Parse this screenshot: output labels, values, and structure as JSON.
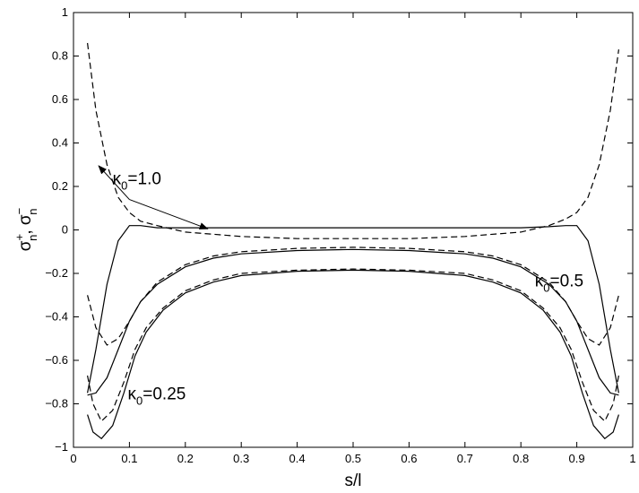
{
  "chart_data": {
    "type": "line",
    "xlabel": "s/l",
    "ylabel": "σ⁺ₙ, σ⁻ₙ",
    "xlim": [
      0,
      1
    ],
    "ylim": [
      -1,
      1
    ],
    "xticks": [
      0,
      0.1,
      0.2,
      0.3,
      0.4,
      0.5,
      0.6,
      0.7,
      0.8,
      0.9,
      1
    ],
    "xtick_labels": [
      "0",
      "0.1",
      "0.2",
      "0.3",
      "0.4",
      "0.5",
      "0.6",
      "0.7",
      "0.8",
      "0.9",
      "1"
    ],
    "yticks": [
      -1,
      -0.8,
      -0.6,
      -0.4,
      -0.2,
      0,
      0.2,
      0.4,
      0.6,
      0.8,
      1
    ],
    "ytick_labels": [
      "−1",
      "−0.8",
      "−0.6",
      "−0.4",
      "−0.2",
      "0",
      "0.2",
      "0.4",
      "0.6",
      "0.8",
      "1"
    ],
    "grid": false,
    "series": [
      {
        "style": "solid",
        "x": [
          0.025,
          0.04,
          0.06,
          0.08,
          0.1,
          0.12,
          0.15,
          0.2,
          0.3,
          0.4,
          0.5,
          0.6,
          0.7,
          0.8,
          0.85,
          0.88,
          0.9,
          0.92,
          0.94,
          0.96,
          0.975
        ],
        "y": [
          -0.75,
          -0.55,
          -0.25,
          -0.05,
          0.02,
          0.02,
          0.01,
          0.01,
          0.01,
          0.01,
          0.01,
          0.01,
          0.01,
          0.01,
          0.015,
          0.02,
          0.02,
          -0.05,
          -0.25,
          -0.55,
          -0.75
        ]
      },
      {
        "style": "dashed",
        "x": [
          0.025,
          0.04,
          0.06,
          0.08,
          0.1,
          0.12,
          0.15,
          0.2,
          0.3,
          0.4,
          0.5,
          0.6,
          0.7,
          0.8,
          0.85,
          0.88,
          0.9,
          0.92,
          0.94,
          0.96,
          0.975
        ],
        "y": [
          0.86,
          0.55,
          0.3,
          0.15,
          0.08,
          0.04,
          0.02,
          -0.01,
          -0.03,
          -0.04,
          -0.04,
          -0.04,
          -0.03,
          -0.01,
          0.02,
          0.05,
          0.08,
          0.15,
          0.3,
          0.55,
          0.83
        ]
      },
      {
        "style": "solid",
        "x": [
          0.025,
          0.04,
          0.06,
          0.08,
          0.1,
          0.12,
          0.15,
          0.2,
          0.25,
          0.3,
          0.4,
          0.5,
          0.6,
          0.7,
          0.75,
          0.8,
          0.85,
          0.88,
          0.9,
          0.92,
          0.94,
          0.96,
          0.975
        ],
        "y": [
          -0.76,
          -0.75,
          -0.68,
          -0.55,
          -0.42,
          -0.33,
          -0.25,
          -0.17,
          -0.13,
          -0.11,
          -0.095,
          -0.09,
          -0.095,
          -0.11,
          -0.13,
          -0.17,
          -0.25,
          -0.33,
          -0.42,
          -0.55,
          -0.68,
          -0.75,
          -0.76
        ]
      },
      {
        "style": "dashed",
        "x": [
          0.025,
          0.04,
          0.06,
          0.08,
          0.1,
          0.12,
          0.15,
          0.2,
          0.25,
          0.3,
          0.4,
          0.5,
          0.6,
          0.7,
          0.75,
          0.8,
          0.85,
          0.88,
          0.9,
          0.92,
          0.94,
          0.96,
          0.975
        ],
        "y": [
          -0.3,
          -0.45,
          -0.53,
          -0.5,
          -0.42,
          -0.33,
          -0.24,
          -0.16,
          -0.12,
          -0.1,
          -0.085,
          -0.08,
          -0.085,
          -0.1,
          -0.12,
          -0.16,
          -0.24,
          -0.33,
          -0.42,
          -0.5,
          -0.53,
          -0.45,
          -0.3
        ]
      },
      {
        "style": "solid",
        "x": [
          0.025,
          0.035,
          0.05,
          0.07,
          0.09,
          0.11,
          0.13,
          0.16,
          0.2,
          0.25,
          0.3,
          0.4,
          0.5,
          0.6,
          0.7,
          0.75,
          0.8,
          0.84,
          0.87,
          0.89,
          0.91,
          0.93,
          0.95,
          0.965,
          0.975
        ],
        "y": [
          -0.85,
          -0.93,
          -0.96,
          -0.9,
          -0.75,
          -0.58,
          -0.47,
          -0.37,
          -0.29,
          -0.24,
          -0.21,
          -0.19,
          -0.185,
          -0.19,
          -0.21,
          -0.24,
          -0.29,
          -0.37,
          -0.47,
          -0.58,
          -0.75,
          -0.9,
          -0.96,
          -0.93,
          -0.85
        ]
      },
      {
        "style": "dashed",
        "x": [
          0.025,
          0.035,
          0.05,
          0.07,
          0.09,
          0.11,
          0.13,
          0.16,
          0.2,
          0.25,
          0.3,
          0.4,
          0.5,
          0.6,
          0.7,
          0.75,
          0.8,
          0.84,
          0.87,
          0.89,
          0.91,
          0.93,
          0.95,
          0.965,
          0.975
        ],
        "y": [
          -0.67,
          -0.8,
          -0.88,
          -0.83,
          -0.7,
          -0.55,
          -0.45,
          -0.36,
          -0.28,
          -0.23,
          -0.2,
          -0.185,
          -0.18,
          -0.185,
          -0.2,
          -0.23,
          -0.28,
          -0.36,
          -0.45,
          -0.55,
          -0.7,
          -0.83,
          -0.88,
          -0.8,
          -0.67
        ]
      }
    ],
    "annotations": [
      {
        "text": "κ0=1.0",
        "base": "κ",
        "sub": "0",
        "rest": "=1.0",
        "x": 0.07,
        "y": 0.21
      },
      {
        "text": "κ0=0.5",
        "base": "κ",
        "sub": "0",
        "rest": "=0.5",
        "x": 0.825,
        "y": -0.26
      },
      {
        "text": "κ0=0.25",
        "base": "κ",
        "sub": "0",
        "rest": "=0.25",
        "x": 0.097,
        "y": -0.78
      }
    ],
    "arrows": [
      {
        "from": [
          0.1,
          0.14
        ],
        "to": [
          0.045,
          0.295
        ]
      },
      {
        "from": [
          0.1,
          0.14
        ],
        "to": [
          0.24,
          0.005
        ]
      }
    ]
  }
}
